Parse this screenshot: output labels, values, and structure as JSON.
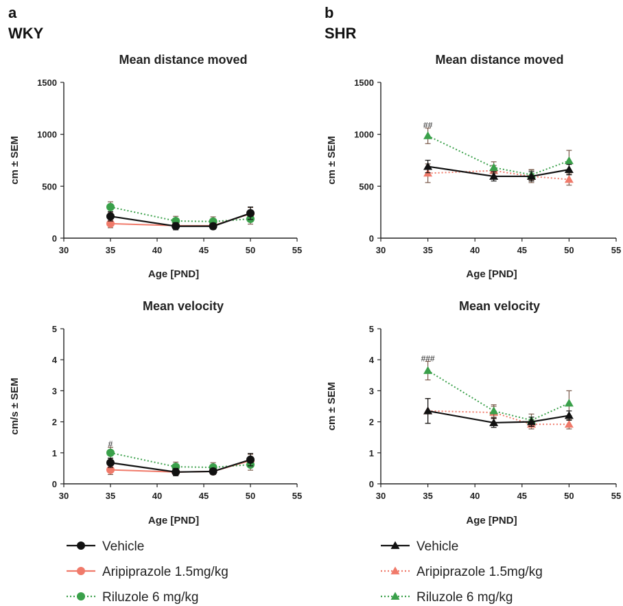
{
  "panels": {
    "a": {
      "letter": "a",
      "strain": "WKY"
    },
    "b": {
      "letter": "b",
      "strain": "SHR"
    }
  },
  "colors": {
    "vehicle": "#111111",
    "aripiprazole": "#f07a6a",
    "riluzole": "#3aa04a"
  },
  "legends": {
    "wky": [
      {
        "series": "vehicle",
        "label": "Vehicle",
        "marker": "circle",
        "dash": "solid"
      },
      {
        "series": "aripiprazole",
        "label": "Aripiprazole 1.5mg/kg",
        "marker": "circle",
        "dash": "solid"
      },
      {
        "series": "riluzole",
        "label": "Riluzole 6 mg/kg",
        "marker": "circle",
        "dash": "dotted"
      }
    ],
    "shr": [
      {
        "series": "vehicle",
        "label": "Vehicle",
        "marker": "triangle",
        "dash": "solid"
      },
      {
        "series": "aripiprazole",
        "label": "Aripiprazole 1.5mg/kg",
        "marker": "triangle",
        "dash": "dotted"
      },
      {
        "series": "riluzole",
        "label": "Riluzole 6 mg/kg",
        "marker": "triangle",
        "dash": "dotted"
      }
    ]
  },
  "chart_data": [
    {
      "id": "wky-distance",
      "type": "line",
      "title": "Mean distance moved",
      "xlabel": "Age [PND]",
      "ylabel": "cm ± SEM",
      "xlim": [
        30,
        55
      ],
      "ylim": [
        0,
        1500
      ],
      "xticks": [
        30,
        35,
        40,
        45,
        50,
        55
      ],
      "yticks": [
        0,
        500,
        1000,
        1500
      ],
      "marker": "circle",
      "x": [
        35,
        42,
        46,
        50
      ],
      "series": [
        {
          "key": "aripiprazole",
          "dash": "solid",
          "values": [
            140,
            120,
            120,
            235
          ],
          "err": [
            40,
            30,
            30,
            60
          ]
        },
        {
          "key": "riluzole",
          "dash": "dotted",
          "values": [
            300,
            165,
            160,
            185
          ],
          "err": [
            50,
            45,
            45,
            50
          ]
        },
        {
          "key": "vehicle",
          "dash": "solid",
          "values": [
            210,
            115,
            115,
            240
          ],
          "err": [
            45,
            35,
            30,
            60
          ]
        }
      ],
      "annotations": []
    },
    {
      "id": "shr-distance",
      "type": "line",
      "title": "Mean distance moved",
      "xlabel": "Age [PND]",
      "ylabel": "cm ± SEM",
      "xlim": [
        30,
        55
      ],
      "ylim": [
        0,
        1500
      ],
      "xticks": [
        30,
        35,
        40,
        45,
        50,
        55
      ],
      "yticks": [
        0,
        500,
        1000,
        1500
      ],
      "marker": "triangle",
      "x": [
        35,
        42,
        46,
        50
      ],
      "series": [
        {
          "key": "aripiprazole",
          "dash": "dotted",
          "values": [
            625,
            650,
            595,
            565
          ],
          "err": [
            90,
            50,
            60,
            55
          ]
        },
        {
          "key": "riluzole",
          "dash": "dotted",
          "values": [
            985,
            680,
            610,
            745
          ],
          "err": [
            75,
            55,
            50,
            100
          ]
        },
        {
          "key": "vehicle",
          "dash": "solid",
          "values": [
            690,
            595,
            595,
            660
          ],
          "err": [
            60,
            45,
            45,
            50
          ]
        }
      ],
      "annotations": [
        {
          "x": 35,
          "y": 1060,
          "text": "##"
        }
      ]
    },
    {
      "id": "wky-velocity",
      "type": "line",
      "title": "Mean velocity",
      "xlabel": "Age [PND]",
      "ylabel": "cm/s ± SEM",
      "xlim": [
        30,
        55
      ],
      "ylim": [
        0,
        5
      ],
      "xticks": [
        30,
        35,
        40,
        45,
        50,
        55
      ],
      "yticks": [
        0,
        1,
        2,
        3,
        4,
        5
      ],
      "marker": "circle",
      "x": [
        35,
        42,
        46,
        50
      ],
      "series": [
        {
          "key": "aripiprazole",
          "dash": "solid",
          "values": [
            0.45,
            0.38,
            0.4,
            0.75
          ],
          "err": [
            0.15,
            0.1,
            0.1,
            0.2
          ]
        },
        {
          "key": "riluzole",
          "dash": "dotted",
          "values": [
            1.0,
            0.55,
            0.53,
            0.62
          ],
          "err": [
            0.18,
            0.15,
            0.15,
            0.18
          ]
        },
        {
          "key": "vehicle",
          "dash": "solid",
          "values": [
            0.68,
            0.38,
            0.4,
            0.78
          ],
          "err": [
            0.15,
            0.12,
            0.1,
            0.2
          ]
        }
      ],
      "annotations": [
        {
          "x": 35,
          "y": 1.2,
          "text": "#"
        }
      ]
    },
    {
      "id": "shr-velocity",
      "type": "line",
      "title": "Mean velocity",
      "xlabel": "Age [PND]",
      "ylabel": "cm ± SEM",
      "xlim": [
        30,
        55
      ],
      "ylim": [
        0,
        5
      ],
      "xticks": [
        30,
        35,
        40,
        45,
        50,
        55
      ],
      "yticks": [
        0,
        1,
        2,
        3,
        4,
        5
      ],
      "marker": "triangle",
      "x": [
        35,
        42,
        46,
        50
      ],
      "series": [
        {
          "key": "aripiprazole",
          "dash": "dotted",
          "values": [
            2.35,
            2.3,
            1.92,
            1.92
          ],
          "err": [
            0.4,
            0.2,
            0.15,
            0.15
          ]
        },
        {
          "key": "riluzole",
          "dash": "dotted",
          "values": [
            3.65,
            2.35,
            2.05,
            2.6
          ],
          "err": [
            0.3,
            0.2,
            0.2,
            0.4
          ]
        },
        {
          "key": "vehicle",
          "dash": "solid",
          "values": [
            2.35,
            1.97,
            2.0,
            2.2
          ],
          "err": [
            0.4,
            0.15,
            0.15,
            0.15
          ]
        }
      ],
      "annotations": [
        {
          "x": 35,
          "y": 3.95,
          "text": "###"
        }
      ]
    }
  ]
}
